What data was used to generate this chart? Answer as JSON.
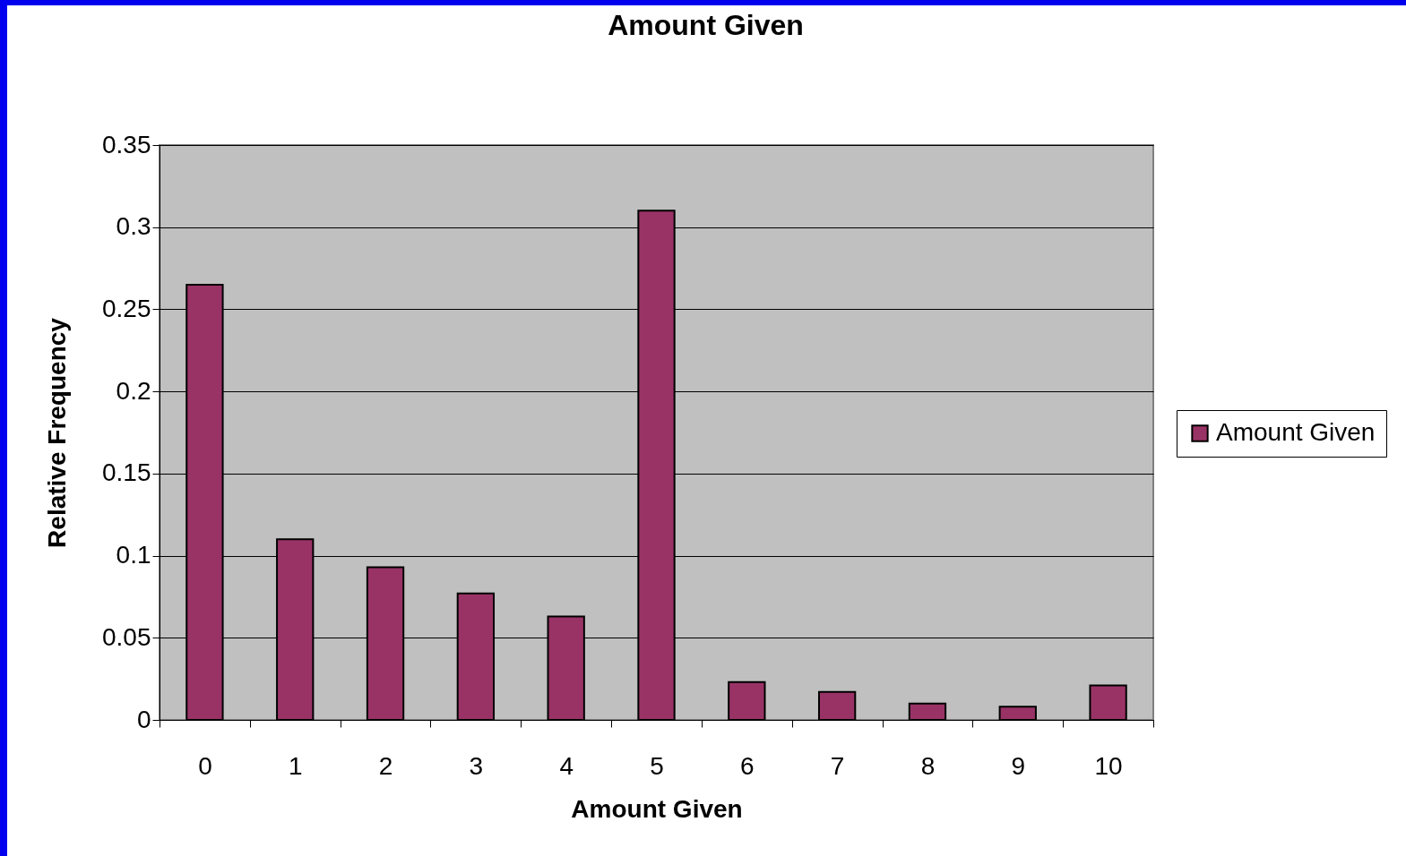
{
  "chart_data": {
    "type": "bar",
    "title": "Amount Given",
    "xlabel": "Amount Given",
    "ylabel": "Relative Frequency",
    "categories": [
      "0",
      "1",
      "2",
      "3",
      "4",
      "5",
      "6",
      "7",
      "8",
      "9",
      "10"
    ],
    "series": [
      {
        "name": "Amount Given",
        "color": "#993366",
        "values": [
          0.265,
          0.11,
          0.093,
          0.077,
          0.063,
          0.31,
          0.023,
          0.017,
          0.01,
          0.008,
          0.021
        ]
      }
    ],
    "ylim": [
      0,
      0.35
    ],
    "yticks": [
      0,
      0.05,
      0.1,
      0.15,
      0.2,
      0.25,
      0.3,
      0.35
    ],
    "grid": "y",
    "legend": "right"
  }
}
